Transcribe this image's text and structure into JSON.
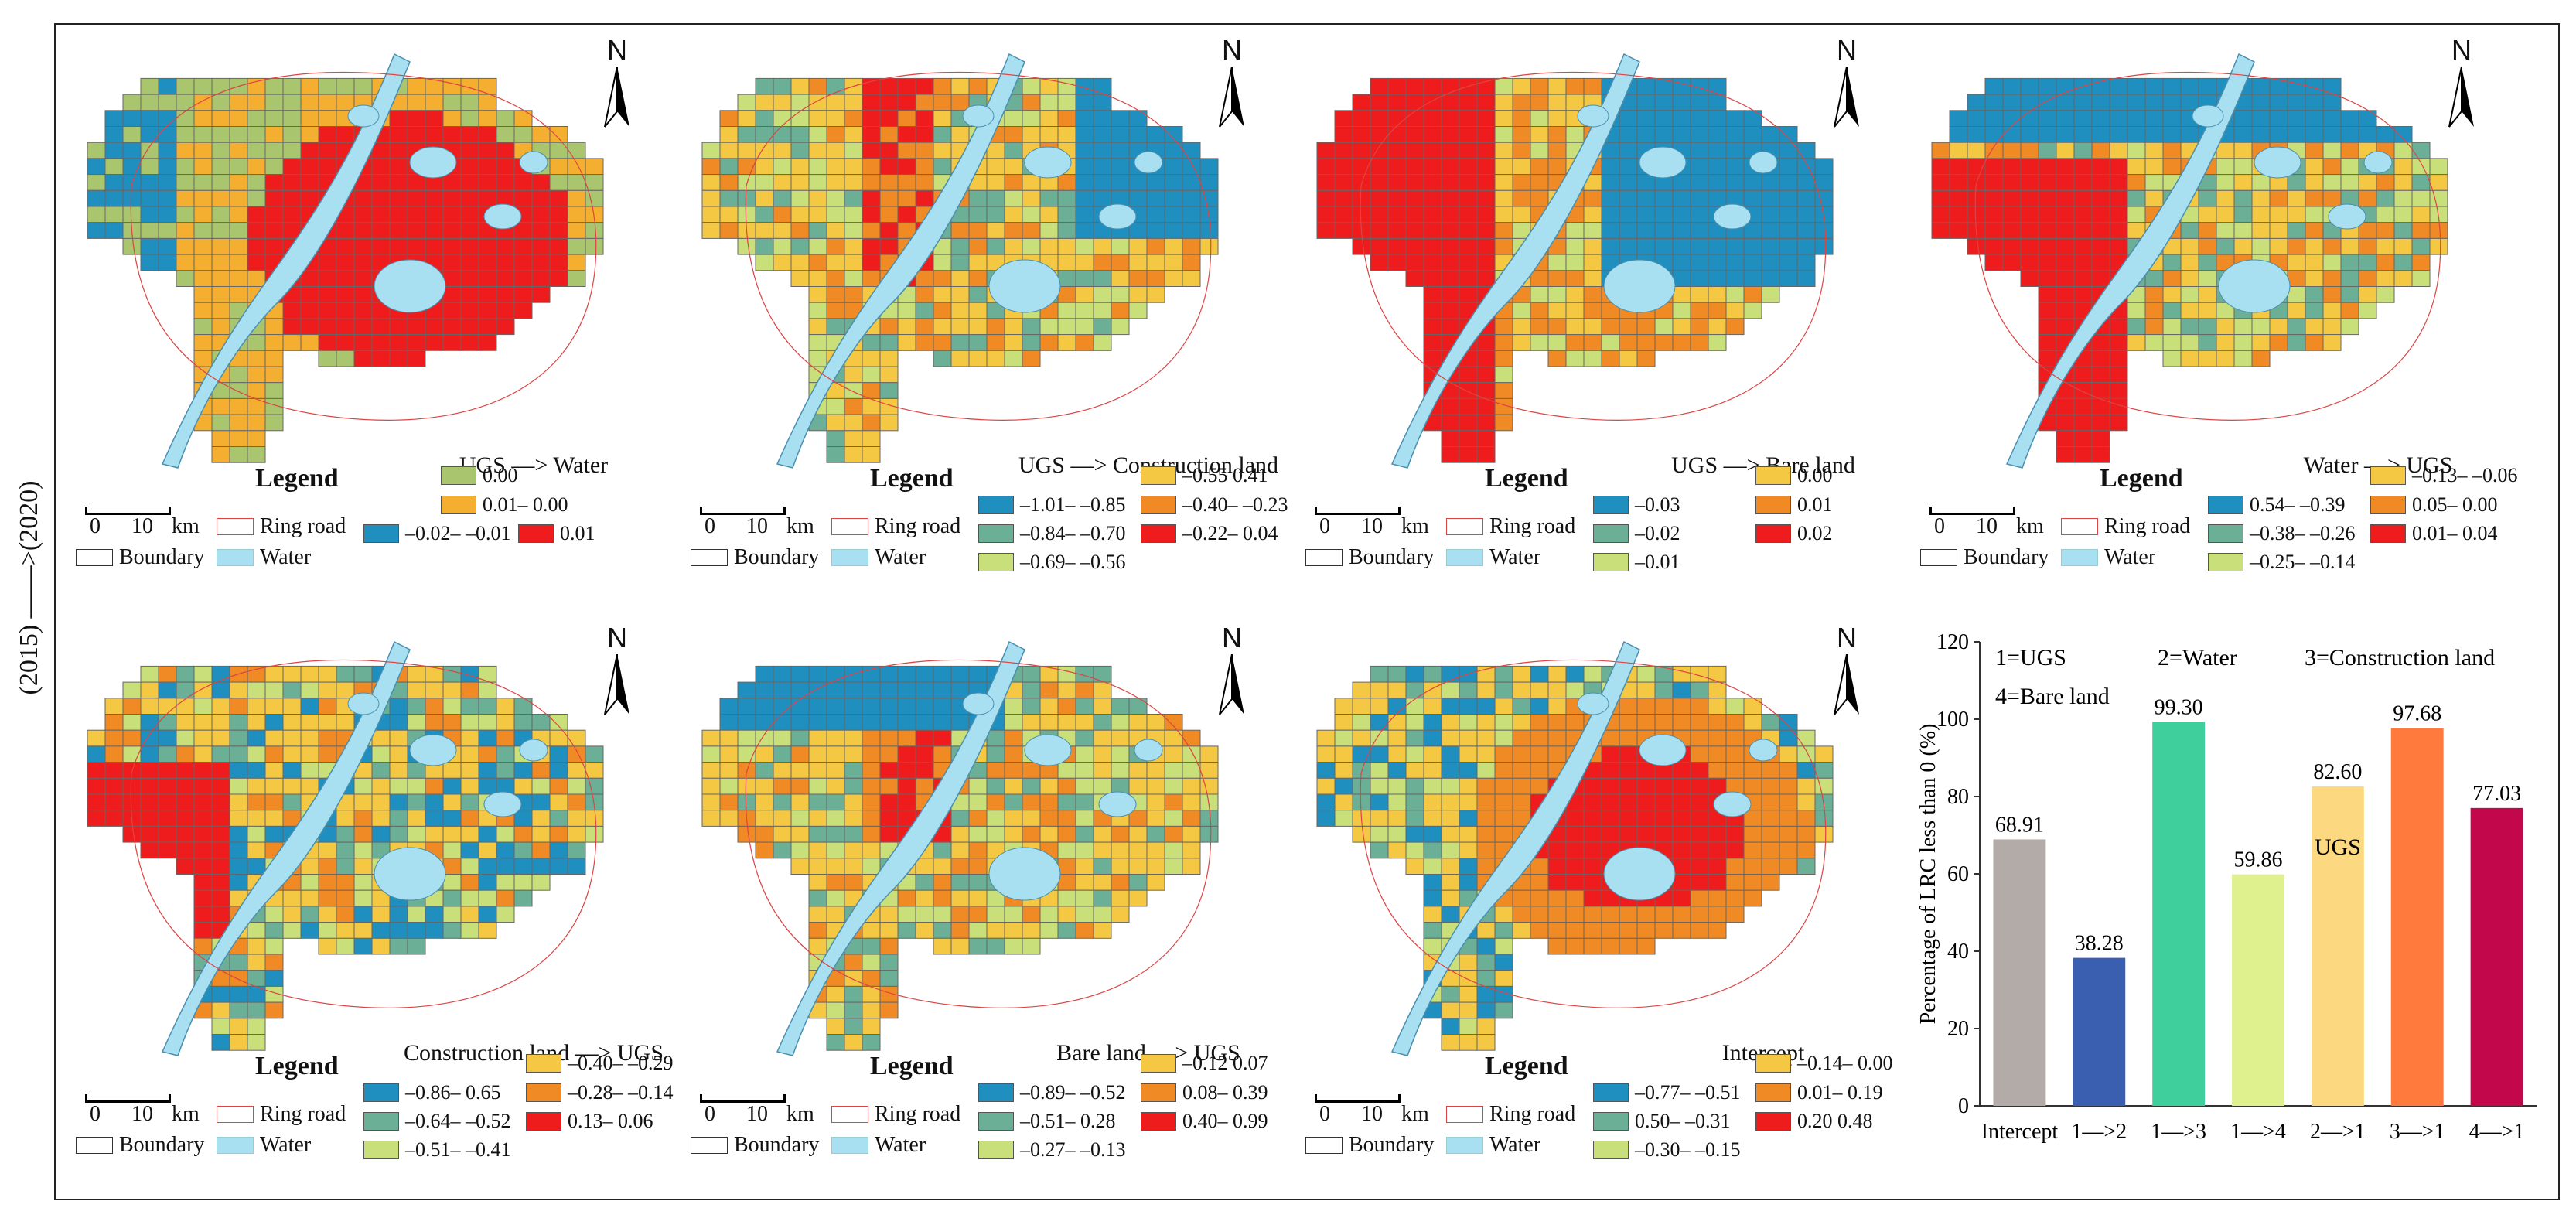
{
  "side_label": "(2015) ——>(2020)",
  "common": {
    "legend": "Legend",
    "scale_zero": "0",
    "scale_ten": "10",
    "scale_unit": "km",
    "ring_road": "Ring road",
    "boundary": "Boundary",
    "water": "Water",
    "north": "N"
  },
  "colors": {
    "blue": "#1f8fc0",
    "teal": "#6aaf96",
    "lightgreen": "#c9df7a",
    "yellow": "#f4c842",
    "orange": "#f08a24",
    "red": "#ee1c1c",
    "water": "#a8e0f2",
    "grid": "#666666"
  },
  "maps": [
    {
      "title": "UGS —> Water",
      "classes": [
        {
          "label": "0.00",
          "color": "#a9c56e"
        },
        {
          "label": "0.01– 0.00",
          "color": "#f4ae30"
        },
        {
          "label": "–0.02– –0.01",
          "color": "#1f8fc0"
        },
        {
          "label": "0.01",
          "color": "#ee1c1c"
        }
      ]
    },
    {
      "title": "UGS —> Construction land",
      "classes": [
        {
          "label": "–0.55 0.41",
          "color": "#f4c842"
        },
        {
          "label": "–1.01– –0.85",
          "color": "#1f8fc0"
        },
        {
          "label": "–0.40– –0.23",
          "color": "#f08a24"
        },
        {
          "label": "–0.84– –0.70",
          "color": "#6aaf96"
        },
        {
          "label": "–0.22– 0.04",
          "color": "#ee1c1c"
        },
        {
          "label": "–0.69– –0.56",
          "color": "#c9df7a"
        }
      ]
    },
    {
      "title": "UGS —> Bare land",
      "classes": [
        {
          "label": "0.00",
          "color": "#f4c842"
        },
        {
          "label": "–0.03",
          "color": "#1f8fc0"
        },
        {
          "label": "0.01",
          "color": "#f08a24"
        },
        {
          "label": "–0.02",
          "color": "#6aaf96"
        },
        {
          "label": "0.02",
          "color": "#ee1c1c"
        },
        {
          "label": "–0.01",
          "color": "#c9df7a"
        }
      ]
    },
    {
      "title": "Water —> UGS",
      "classes": [
        {
          "label": "–0.13– –0.06",
          "color": "#f4c842"
        },
        {
          "label": "0.54– –0.39",
          "color": "#1f8fc0"
        },
        {
          "label": "0.05– 0.00",
          "color": "#f08a24"
        },
        {
          "label": "–0.38– –0.26",
          "color": "#6aaf96"
        },
        {
          "label": "0.01– 0.04",
          "color": "#ee1c1c"
        },
        {
          "label": "–0.25– –0.14",
          "color": "#c9df7a"
        }
      ]
    },
    {
      "title": "Construction land —> UGS",
      "classes": [
        {
          "label": "–0.40– –0.29",
          "color": "#f4c842"
        },
        {
          "label": "–0.86– 0.65",
          "color": "#1f8fc0"
        },
        {
          "label": "–0.28– –0.14",
          "color": "#f08a24"
        },
        {
          "label": "–0.64– –0.52",
          "color": "#6aaf96"
        },
        {
          "label": "0.13– 0.06",
          "color": "#ee1c1c"
        },
        {
          "label": "–0.51– –0.41",
          "color": "#c9df7a"
        }
      ]
    },
    {
      "title": "Bare land —> UGS",
      "classes": [
        {
          "label": "–0.12 0.07",
          "color": "#f4c842"
        },
        {
          "label": "–0.89– –0.52",
          "color": "#1f8fc0"
        },
        {
          "label": "0.08– 0.39",
          "color": "#f08a24"
        },
        {
          "label": "–0.51– 0.28",
          "color": "#6aaf96"
        },
        {
          "label": "0.40– 0.99",
          "color": "#ee1c1c"
        },
        {
          "label": "–0.27– –0.13",
          "color": "#c9df7a"
        }
      ]
    },
    {
      "title": "Intercept",
      "classes": [
        {
          "label": "–0.14– 0.00",
          "color": "#f4c842"
        },
        {
          "label": "–0.77– –0.51",
          "color": "#1f8fc0"
        },
        {
          "label": "0.01– 0.19",
          "color": "#f08a24"
        },
        {
          "label": "0.50– –0.31",
          "color": "#6aaf96"
        },
        {
          "label": "0.20 0.48",
          "color": "#ee1c1c"
        },
        {
          "label": "–0.30– –0.15",
          "color": "#c9df7a"
        }
      ]
    }
  ],
  "chart_data": {
    "type": "bar",
    "ylabel": "Percentage of LRC less than 0 (%)",
    "ylim": [
      0,
      120
    ],
    "yticks": [
      0,
      20,
      40,
      60,
      80,
      100,
      120
    ],
    "categories": [
      "Intercept",
      "1—>2",
      "1—>3",
      "1—>4",
      "2—>1",
      "3—>1",
      "4—>1"
    ],
    "values": [
      68.91,
      38.28,
      99.3,
      59.86,
      82.6,
      97.68,
      77.03
    ],
    "value_labels": [
      "68.91",
      "38.28",
      "99.30",
      "59.86",
      "82.60",
      "97.68",
      "77.03"
    ],
    "colors": [
      "#b3aba7",
      "#3a5fb0",
      "#3fcf9c",
      "#dff08e",
      "#fcd880",
      "#ff7a3c",
      "#c2084a"
    ],
    "annotations": [
      "1=UGS",
      "2=Water",
      "3=Construction land",
      "4=Bare land",
      "UGS"
    ]
  }
}
